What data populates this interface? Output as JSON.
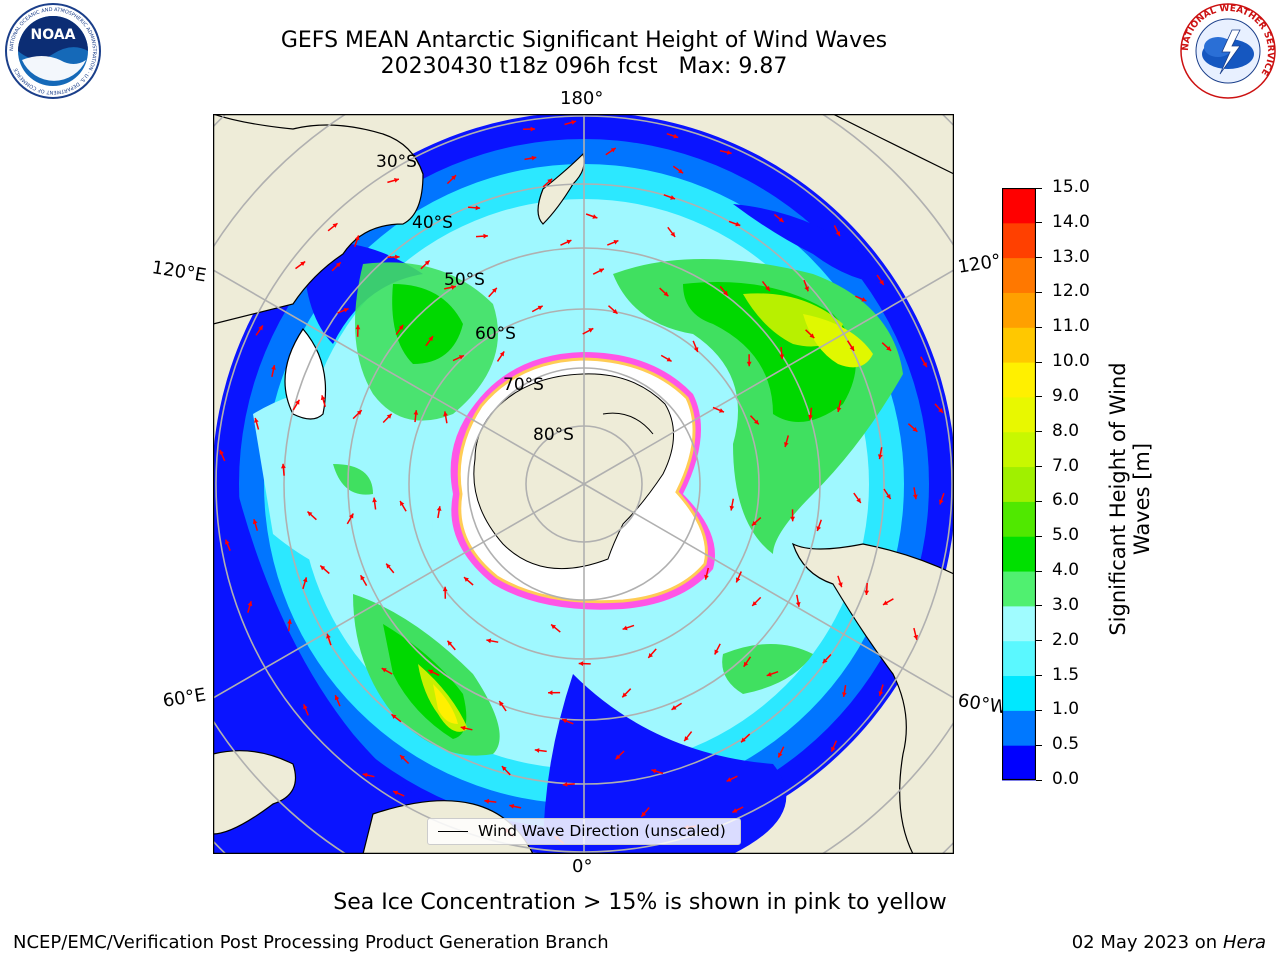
{
  "title": {
    "line1": "GEFS MEAN Antarctic Significant Height of Wind Waves",
    "line2": "20230430 t18z 096h fcst   Max: 9.87"
  },
  "logos": {
    "noaa": {
      "text": "NOAA",
      "ring_text": "NATIONAL OCEANIC AND ATMOSPHERIC ADMINISTRATION · U.S. DEPARTMENT OF COMMERCE"
    },
    "nws": {
      "ring_text": "NATIONAL WEATHER SERVICE"
    }
  },
  "map": {
    "projection": "south polar stereographic",
    "longitude_labels": {
      "top": "180°",
      "bottom": "0°",
      "upper_left": "120°E",
      "lower_left": "60°E",
      "upper_right": "120°",
      "lower_right": "60°W"
    },
    "latitude_labels": [
      "30°S",
      "40°S",
      "50°S",
      "60°S",
      "70°S",
      "80°S"
    ],
    "colors": {
      "land": "#eeecd8",
      "ice": "#ffffff",
      "ice_edge": [
        "#ff33dd",
        "#ff99ee",
        "#ffdd66"
      ],
      "arrows": "#ff0000",
      "grid": "#b0b0b0"
    },
    "legend": "Wind Wave Direction (unscaled)"
  },
  "colorbar": {
    "label_line1": "Significant Height of Wind",
    "label_line2": "Waves [m]",
    "ticks": [
      "0.0",
      "0.5",
      "1.0",
      "1.5",
      "2.0",
      "3.0",
      "4.0",
      "5.0",
      "6.0",
      "7.0",
      "8.0",
      "9.0",
      "10.0",
      "11.0",
      "12.0",
      "13.0",
      "14.0",
      "15.0"
    ],
    "colors": [
      "#0000ff",
      "#0078ff",
      "#00e8ff",
      "#5af8ff",
      "#a0fcff",
      "#50f070",
      "#00e000",
      "#50e800",
      "#a0f000",
      "#c8f800",
      "#e8f800",
      "#fff000",
      "#ffc800",
      "#ffa000",
      "#ff7800",
      "#ff4000",
      "#ff0000"
    ]
  },
  "note": "Sea Ice Concentration > 15% is shown in pink to yellow",
  "footer": {
    "left": "NCEP/EMC/Verification Post Processing Product Generation Branch",
    "right_date": "02 May 2023 on",
    "right_host": "Hera"
  }
}
